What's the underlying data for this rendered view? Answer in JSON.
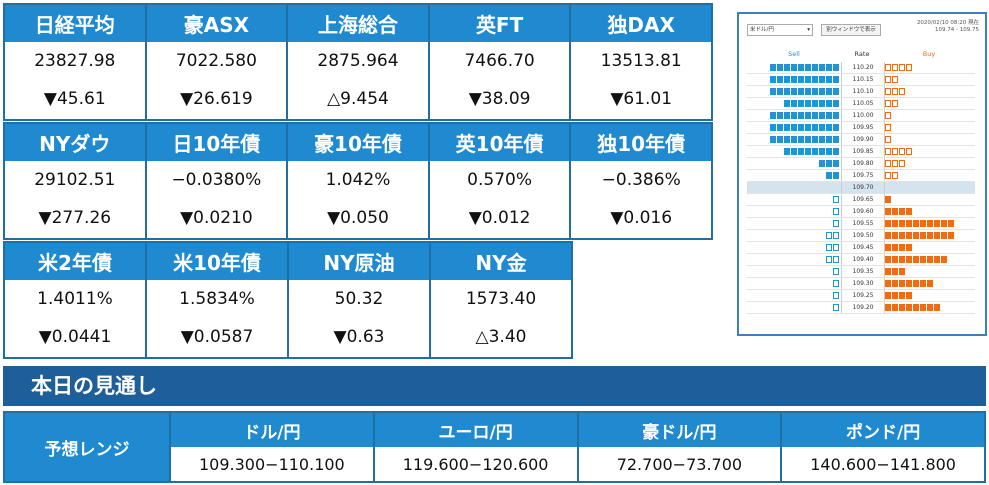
{
  "markets_row1": [
    {
      "name": "日経平均",
      "value": "23827.98",
      "change": "▼45.61"
    },
    {
      "name": "豪ASX",
      "value": "7022.580",
      "change": "▼26.619"
    },
    {
      "name": "上海総合",
      "value": "2875.964",
      "change": "△9.454"
    },
    {
      "name": "英FT",
      "value": "7466.70",
      "change": "▼38.09"
    },
    {
      "name": "独DAX",
      "value": "13513.81",
      "change": "▼61.01"
    }
  ],
  "markets_row2": [
    {
      "name": "NYダウ",
      "value": "29102.51",
      "change": "▼277.26"
    },
    {
      "name": "日10年債",
      "value": "−0.0380%",
      "change": "▼0.0210"
    },
    {
      "name": "豪10年債",
      "value": "1.042%",
      "change": "▼0.050"
    },
    {
      "name": "英10年債",
      "value": "0.570%",
      "change": "▼0.012"
    },
    {
      "name": "独10年債",
      "value": "−0.386%",
      "change": "▼0.016"
    }
  ],
  "markets_row3": [
    {
      "name": "米2年債",
      "value": "1.4011%",
      "change": "▼0.0441"
    },
    {
      "name": "米10年債",
      "value": "1.5834%",
      "change": "▼0.0587"
    },
    {
      "name": "NY原油",
      "value": "50.32",
      "change": "▼0.63"
    },
    {
      "name": "NY金",
      "value": "1573.40",
      "change": "△3.40"
    }
  ],
  "order_board": {
    "pair_select": "米ドル/円",
    "window_button": "別ウィンドウで表示",
    "timestamp": "2020/02/10 08:20 現在",
    "bid_ask": "109.74 - 109.75",
    "sell_label": "Sell",
    "rate_label": "Rate",
    "buy_label": "Buy",
    "colors": {
      "sell": "#1f95d6",
      "buy": "#f26b10",
      "mid": "#d5e3ef"
    },
    "rows": [
      {
        "rate": "110.20",
        "sell": [
          10,
          0
        ],
        "buy": [
          0,
          4
        ]
      },
      {
        "rate": "110.15",
        "sell": [
          10,
          0
        ],
        "buy": [
          0,
          2
        ]
      },
      {
        "rate": "110.10",
        "sell": [
          10,
          0
        ],
        "buy": [
          0,
          3
        ]
      },
      {
        "rate": "110.05",
        "sell": [
          8,
          0
        ],
        "buy": [
          0,
          2
        ]
      },
      {
        "rate": "110.00",
        "sell": [
          10,
          0
        ],
        "buy": [
          0,
          1
        ]
      },
      {
        "rate": "109.95",
        "sell": [
          10,
          0
        ],
        "buy": [
          0,
          1
        ]
      },
      {
        "rate": "109.90",
        "sell": [
          10,
          0
        ],
        "buy": [
          0,
          1
        ]
      },
      {
        "rate": "109.85",
        "sell": [
          8,
          0
        ],
        "buy": [
          0,
          4
        ]
      },
      {
        "rate": "109.80",
        "sell": [
          3,
          0
        ],
        "buy": [
          0,
          3
        ]
      },
      {
        "rate": "109.75",
        "sell": [
          2,
          0
        ],
        "buy": [
          0,
          2
        ]
      },
      {
        "rate": "109.70",
        "sell": [
          0,
          0
        ],
        "buy": [
          0,
          0
        ],
        "mid": true
      },
      {
        "rate": "109.65",
        "sell": [
          0,
          1
        ],
        "buy": [
          1,
          0
        ]
      },
      {
        "rate": "109.60",
        "sell": [
          0,
          1
        ],
        "buy": [
          4,
          0
        ]
      },
      {
        "rate": "109.55",
        "sell": [
          0,
          1
        ],
        "buy": [
          10,
          0
        ]
      },
      {
        "rate": "109.50",
        "sell": [
          0,
          2
        ],
        "buy": [
          10,
          0
        ]
      },
      {
        "rate": "109.45",
        "sell": [
          0,
          2
        ],
        "buy": [
          4,
          0
        ]
      },
      {
        "rate": "109.40",
        "sell": [
          0,
          2
        ],
        "buy": [
          9,
          0
        ]
      },
      {
        "rate": "109.35",
        "sell": [
          0,
          1
        ],
        "buy": [
          3,
          0
        ]
      },
      {
        "rate": "109.30",
        "sell": [
          0,
          1
        ],
        "buy": [
          7,
          0
        ]
      },
      {
        "rate": "109.25",
        "sell": [
          0,
          1
        ],
        "buy": [
          4,
          0
        ]
      },
      {
        "rate": "109.20",
        "sell": [
          0,
          1
        ],
        "buy": [
          8,
          0
        ]
      }
    ]
  },
  "outlook": {
    "title": "本日の見通し",
    "range_label": "予想レンジ",
    "items": [
      {
        "pair": "ドル/円",
        "range": "109.300−110.100"
      },
      {
        "pair": "ユーロ/円",
        "range": "119.600−120.600"
      },
      {
        "pair": "豪ドル/円",
        "range": "72.700−73.700"
      },
      {
        "pair": "ポンド/円",
        "range": "140.600−141.800"
      }
    ]
  }
}
